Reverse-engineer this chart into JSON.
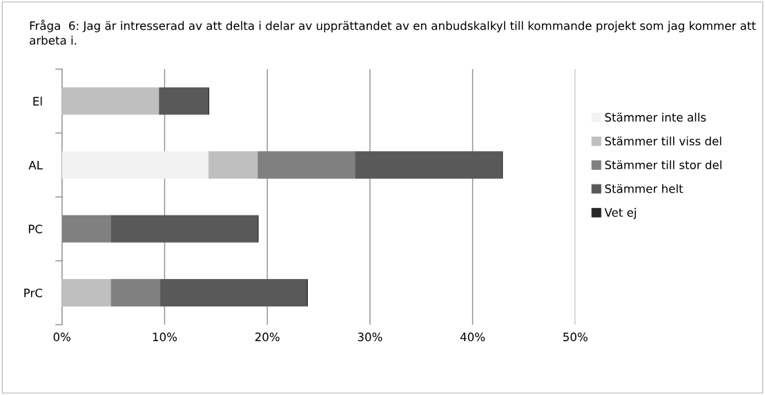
{
  "chart_data": {
    "type": "bar",
    "orientation": "horizontal",
    "stacked": true,
    "title": "Fråga  6: Jag är intresserad av att delta i delar av upprättandet av en anbudskalkyl till kommande projekt som jag kommer att arbeta i.",
    "categories": [
      "El",
      "AL",
      "PC",
      "PrC"
    ],
    "series": [
      {
        "name": "Stämmer inte alls",
        "color": "#f2f2f2",
        "values": [
          0,
          14.3,
          0,
          0
        ]
      },
      {
        "name": "Stämmer till viss del",
        "color": "#bfbfbf",
        "values": [
          9.5,
          4.8,
          0,
          4.8
        ]
      },
      {
        "name": "Stämmer till stor del",
        "color": "#808080",
        "values": [
          0,
          9.5,
          4.8,
          4.8
        ]
      },
      {
        "name": "Stämmer helt",
        "color": "#595959",
        "values": [
          4.8,
          14.3,
          14.3,
          14.3
        ]
      },
      {
        "name": "Vet ej",
        "color": "#262626",
        "values": [
          0,
          0,
          0,
          0
        ]
      }
    ],
    "xlim": [
      0,
      50
    ],
    "xticks": [
      {
        "value": 0,
        "label": "0%"
      },
      {
        "value": 10,
        "label": "10%"
      },
      {
        "value": 20,
        "label": "20%"
      },
      {
        "value": 30,
        "label": "30%"
      },
      {
        "value": 40,
        "label": "40%"
      },
      {
        "value": 50,
        "label": "50%"
      }
    ],
    "grid": "x",
    "legend": "right"
  }
}
